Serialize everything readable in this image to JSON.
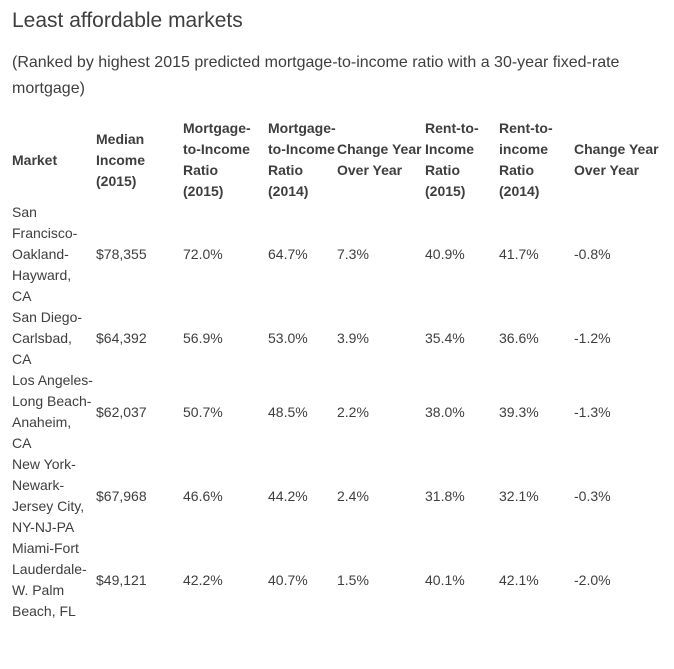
{
  "page": {
    "title": "Least affordable markets",
    "subtitle": "(Ranked by highest 2015 predicted mortgage-to-income ratio with a 30-year fixed-rate mortgage)"
  },
  "chart_data": {
    "type": "table",
    "title": "Least affordable markets",
    "subtitle": "(Ranked by highest 2015 predicted mortgage-to-income ratio with a 30-year fixed-rate mortgage)",
    "columns": [
      "Market",
      "Median Income (2015)",
      "Mortgage-to-Income Ratio (2015)",
      "Mortgage-to-Income Ratio (2014)",
      "Change Year Over Year",
      "Rent-to-Income Ratio (2015)",
      "Rent-to-income Ratio (2014)",
      "Change Year Over Year"
    ],
    "rows": [
      [
        "San Francisco-Oakland-Hayward, CA",
        "$78,355",
        "72.0%",
        "64.7%",
        "7.3%",
        "40.9%",
        "41.7%",
        "-0.8%"
      ],
      [
        "San Diego-Carlsbad, CA",
        "$64,392",
        "56.9%",
        "53.0%",
        "3.9%",
        "35.4%",
        "36.6%",
        "-1.2%"
      ],
      [
        "Los Angeles-Long Beach-Anaheim, CA",
        "$62,037",
        "50.7%",
        "48.5%",
        "2.2%",
        "38.0%",
        "39.3%",
        "-1.3%"
      ],
      [
        "New York-Newark-Jersey City, NY-NJ-PA",
        "$67,968",
        "46.6%",
        "44.2%",
        "2.4%",
        "31.8%",
        "32.1%",
        "-0.3%"
      ],
      [
        "Miami-Fort Lauderdale-W. Palm Beach, FL",
        "$49,121",
        "42.2%",
        "40.7%",
        "1.5%",
        "40.1%",
        "42.1%",
        "-2.0%"
      ]
    ]
  },
  "colors": {
    "text": "#3e3e3e",
    "background": "#ffffff"
  }
}
